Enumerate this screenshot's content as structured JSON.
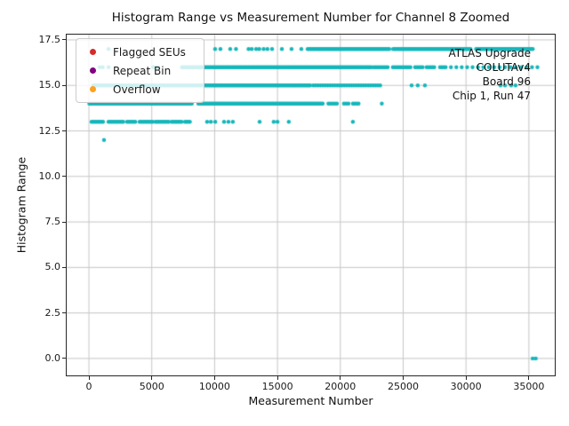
{
  "chart_data": {
    "type": "scatter",
    "title": "Histogram Range vs Measurement Number for Channel 8 Zoomed",
    "xlabel": "Measurement Number",
    "ylabel": "Histogram Range",
    "xlim": [
      -1770,
      37060
    ],
    "ylim": [
      -0.93,
      17.79
    ],
    "xticks": [
      "0",
      "5000",
      "10000",
      "15000",
      "20000",
      "25000",
      "30000",
      "35000"
    ],
    "yticks": [
      "0.0",
      "2.5",
      "5.0",
      "7.5",
      "10.0",
      "12.5",
      "15.0",
      "17.5"
    ],
    "grid": true,
    "grid_color": "#c6c6c6",
    "legend_position": "upper left",
    "legend": [
      {
        "label": "Flagged SEUs",
        "color": "#d62b2b"
      },
      {
        "label": "Repeat Bin",
        "color": "#800080"
      },
      {
        "label": "Overflow",
        "color": "#ffa01e"
      }
    ],
    "annotation": {
      "lines": [
        "ATLAS Upgrade",
        "COLUTAv4",
        "Board 96",
        "Chip 1, Run 47"
      ]
    },
    "series": [
      {
        "name": "histogram-range-vs-measurement",
        "color": "#14b6ba",
        "marker_radius_px": 2.2,
        "segments": [
          {
            "y": 17,
            "x0": 17400,
            "x1": 23900,
            "step": 110
          },
          {
            "y": 17,
            "x0": 24200,
            "x1": 30400,
            "step": 110
          },
          {
            "y": 17,
            "x0": 30800,
            "x1": 35350,
            "step": 110
          },
          {
            "y": 16,
            "x0": 7400,
            "x1": 22500,
            "step": 110
          },
          {
            "y": 16,
            "x0": 22650,
            "x1": 23900,
            "step": 140
          },
          {
            "y": 16,
            "x0": 24180,
            "x1": 25670,
            "step": 140
          },
          {
            "y": 16,
            "x0": 25950,
            "x1": 26660,
            "step": 150
          },
          {
            "y": 16,
            "x0": 26870,
            "x1": 27580,
            "step": 150
          },
          {
            "y": 16,
            "x0": 27930,
            "x1": 28500,
            "step": 150
          },
          {
            "y": 16,
            "x0": 28800,
            "x1": 36100,
            "step": 430
          },
          {
            "y": 15,
            "x0": 350,
            "x1": 17700,
            "step": 115
          },
          {
            "y": 15,
            "x0": 17850,
            "x1": 23300,
            "step": 190
          },
          {
            "y": 14,
            "x0": 30,
            "x1": 8300,
            "step": 115
          },
          {
            "y": 14,
            "x0": 8700,
            "x1": 18600,
            "step": 110
          },
          {
            "y": 14,
            "x0": 19050,
            "x1": 19800,
            "step": 170
          },
          {
            "y": 14,
            "x0": 20290,
            "x1": 20650,
            "step": 180
          },
          {
            "y": 14,
            "x0": 21000,
            "x1": 21570,
            "step": 150
          },
          {
            "y": 13,
            "x0": 210,
            "x1": 1200,
            "step": 130
          },
          {
            "y": 13,
            "x0": 1560,
            "x1": 2830,
            "step": 130
          },
          {
            "y": 13,
            "x0": 3040,
            "x1": 3750,
            "step": 130
          },
          {
            "y": 13,
            "x0": 4030,
            "x1": 5090,
            "step": 130
          },
          {
            "y": 13,
            "x0": 5300,
            "x1": 6360,
            "step": 130
          },
          {
            "y": 13,
            "x0": 6580,
            "x1": 7420,
            "step": 130
          },
          {
            "y": 13,
            "x0": 7640,
            "x1": 8130,
            "step": 130
          }
        ],
        "points": [
          {
            "y": 17,
            "x": [
              1560,
              10040,
              10460,
              11240,
              11700,
              12700,
              12950,
              13300,
              13550,
              13900,
              14200,
              14570,
              15350,
              16120,
              16900
            ]
          },
          {
            "y": 16,
            "x": [
              850,
              1100,
              1560,
              5100,
              5300,
              5500
            ]
          },
          {
            "y": 15,
            "x": [
              25670,
              26160,
              26730,
              32740,
              33100,
              33590,
              33940
            ]
          },
          {
            "y": 14,
            "x": [
              23300
            ]
          },
          {
            "y": 13,
            "x": [
              9400,
              9700,
              10050,
              10750,
              11100,
              11450,
              13580,
              14700,
              15000,
              15900,
              21000
            ]
          },
          {
            "y": 12,
            "x": [
              1200
            ]
          },
          {
            "y": 0,
            "x": [
              35300,
              35550
            ]
          }
        ]
      }
    ]
  }
}
